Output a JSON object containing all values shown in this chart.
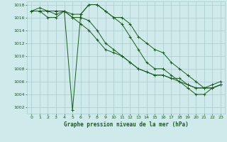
{
  "background_color": "#ceeaea",
  "grid_color": "#aacccc",
  "line_color": "#1a5c1a",
  "title": "Graphe pression niveau de la mer (hPa)",
  "xlim": [
    -0.5,
    23.5
  ],
  "ylim": [
    1001.0,
    1018.5
  ],
  "yticks": [
    1002,
    1004,
    1006,
    1008,
    1010,
    1012,
    1014,
    1016,
    1018
  ],
  "xticks": [
    0,
    1,
    2,
    3,
    4,
    5,
    6,
    7,
    8,
    9,
    10,
    11,
    12,
    13,
    14,
    15,
    16,
    17,
    18,
    19,
    20,
    21,
    22,
    23
  ],
  "series": [
    [
      1017,
      1017.5,
      1017,
      1016.5,
      1017,
      1016.5,
      1016.5,
      1018,
      1018,
      1017,
      1016,
      1016,
      1015,
      1013,
      1012,
      1011,
      1010.5,
      1009,
      1008,
      1007,
      1006,
      1005,
      1005,
      1005.5
    ],
    [
      1017,
      1017,
      1016,
      1016,
      1017,
      1001.5,
      1016.5,
      1018,
      1018,
      1017,
      1016,
      1015,
      1013,
      1011,
      1009,
      1008,
      1008,
      1007,
      1006,
      1005,
      1004,
      1004,
      1005,
      1005.5
    ],
    [
      1017,
      1017,
      1017,
      1017,
      1017,
      1016,
      1015,
      1014,
      1012.5,
      1011,
      1010.5,
      1010,
      1009,
      1008,
      1007.5,
      1007,
      1007,
      1006.5,
      1006,
      1005.5,
      1005,
      1005,
      1005,
      1005.5
    ],
    [
      1017,
      1017,
      1017,
      1017,
      1017,
      1016,
      1016,
      1015.5,
      1014,
      1012,
      1011,
      1010,
      1009,
      1008,
      1007.5,
      1007,
      1007,
      1006.5,
      1006.5,
      1005.5,
      1005,
      1005,
      1005.5,
      1006
    ]
  ]
}
